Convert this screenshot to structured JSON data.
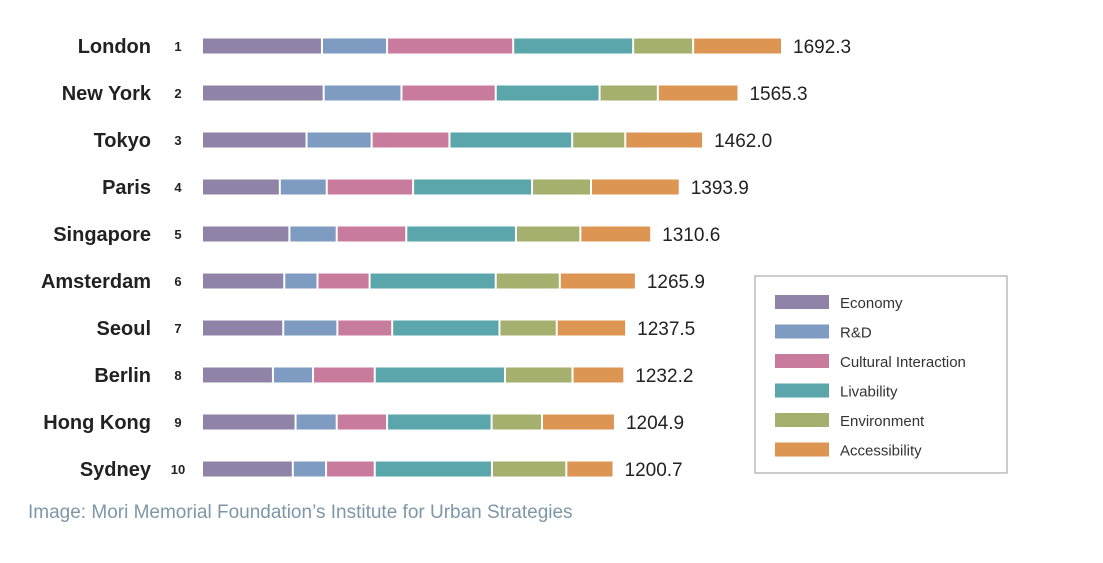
{
  "chart_data": {
    "type": "bar",
    "orientation": "horizontal",
    "stacked": true,
    "legend_position": "right",
    "grid": false,
    "xlim": [
      0,
      1692.3
    ],
    "categories": [
      "London",
      "New York",
      "Tokyo",
      "Paris",
      "Singapore",
      "Amsterdam",
      "Seoul",
      "Berlin",
      "Hong Kong",
      "Sydney"
    ],
    "ranks": [
      "1",
      "2",
      "3",
      "4",
      "5",
      "6",
      "7",
      "8",
      "9",
      "10"
    ],
    "totals": [
      "1692.3",
      "1565.3",
      "1462.0",
      "1393.9",
      "1310.6",
      "1265.9",
      "1237.5",
      "1232.2",
      "1204.9",
      "1200.7"
    ],
    "series": [
      {
        "name": "Economy",
        "color": "#8f84a8",
        "values": [
          350,
          355,
          305,
          227,
          255,
          240,
          237,
          207,
          273,
          265
        ]
      },
      {
        "name": "R&D",
        "color": "#7e9cc2",
        "values": [
          190,
          227,
          190,
          137,
          138,
          97,
          158,
          117,
          120,
          97
        ]
      },
      {
        "name": "Cultural Interaction",
        "color": "#c87b9c",
        "values": [
          368,
          275,
          227,
          252,
          203,
          152,
          160,
          180,
          147,
          142
        ]
      },
      {
        "name": "Livability",
        "color": "#5aa6ab",
        "values": [
          350,
          303,
          358,
          347,
          320,
          368,
          313,
          380,
          305,
          342
        ]
      },
      {
        "name": "Environment",
        "color": "#a5b06e",
        "values": [
          175,
          170,
          155,
          172,
          188,
          187,
          167,
          197,
          147,
          217
        ]
      },
      {
        "name": "Accessibility",
        "color": "#dd9553",
        "values": [
          259.3,
          235.3,
          227.0,
          258.9,
          206.6,
          221.9,
          202.5,
          151.2,
          212.9,
          137.7
        ]
      }
    ]
  },
  "caption": "Image: Mori Memorial Foundation’s Institute for Urban Strategies"
}
